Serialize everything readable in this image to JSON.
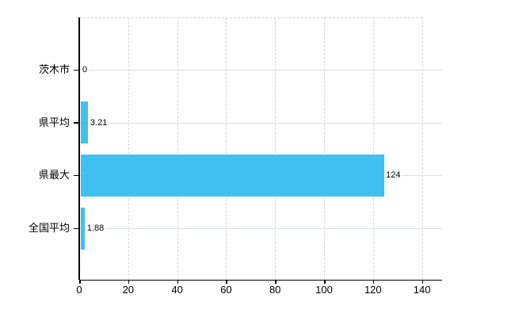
{
  "chart_data": {
    "type": "bar",
    "orientation": "horizontal",
    "title": "",
    "xlabel": "",
    "ylabel": "",
    "categories": [
      "茨木市",
      "県平均",
      "県最大",
      "全国平均"
    ],
    "values": [
      0,
      3.21,
      124,
      1.88
    ],
    "value_labels": [
      "0",
      "3.21",
      "124",
      "1.88"
    ],
    "xlim": [
      0,
      148
    ],
    "xticks": [
      0,
      20,
      40,
      60,
      80,
      100,
      120,
      140
    ],
    "grid": true,
    "legend": false,
    "colors": {
      "bar": "#3fc0ef",
      "axis": "#000000",
      "category_gridline": "#d7ded7",
      "tick_gridline": "#d9d4db",
      "text": "#000000",
      "background": "#ffffff"
    }
  }
}
